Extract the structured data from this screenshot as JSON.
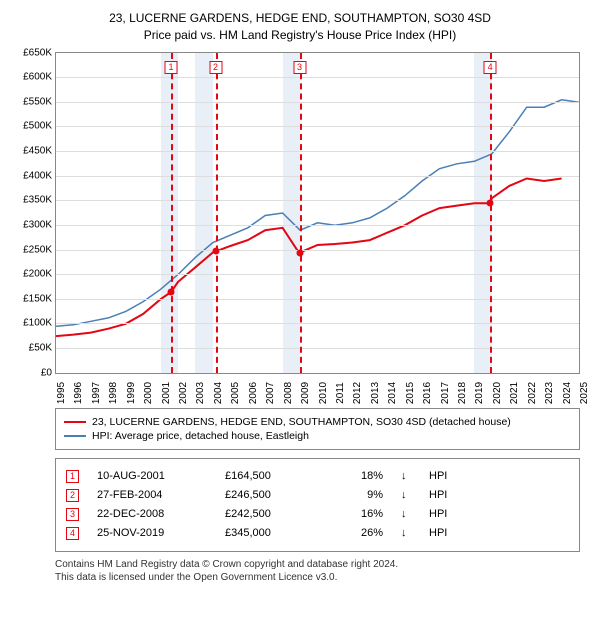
{
  "title_line1": "23, LUCERNE GARDENS, HEDGE END, SOUTHAMPTON, SO30 4SD",
  "title_line2": "Price paid vs. HM Land Registry's House Price Index (HPI)",
  "chart": {
    "type": "line",
    "x_start": 1995,
    "x_end": 2025,
    "y_min": 0,
    "y_max": 650000,
    "y_step": 50000,
    "y_prefix": "£",
    "y_suffix": "K",
    "xticks": [
      1995,
      1996,
      1997,
      1998,
      1999,
      2000,
      2001,
      2002,
      2003,
      2004,
      2005,
      2006,
      2007,
      2008,
      2009,
      2010,
      2011,
      2012,
      2013,
      2014,
      2015,
      2016,
      2017,
      2018,
      2019,
      2020,
      2021,
      2022,
      2023,
      2024,
      2025
    ],
    "bands": [
      [
        2001,
        2002
      ],
      [
        2003,
        2004
      ],
      [
        2008,
        2009
      ],
      [
        2019,
        2020
      ]
    ],
    "markers": [
      {
        "n": "1",
        "x": 2001.6
      },
      {
        "n": "2",
        "x": 2004.15
      },
      {
        "n": "3",
        "x": 2008.97
      },
      {
        "n": "4",
        "x": 2019.9
      }
    ],
    "points": [
      {
        "x": 2001.6,
        "y": 164500
      },
      {
        "x": 2004.15,
        "y": 246500
      },
      {
        "x": 2008.97,
        "y": 242500
      },
      {
        "x": 2019.9,
        "y": 345000
      }
    ],
    "series": [
      {
        "name": "property",
        "color": "#e30613",
        "width": 2,
        "data": [
          [
            1995,
            75000
          ],
          [
            1996,
            78000
          ],
          [
            1997,
            82000
          ],
          [
            1998,
            90000
          ],
          [
            1999,
            100000
          ],
          [
            2000,
            120000
          ],
          [
            2001,
            150000
          ],
          [
            2001.6,
            164500
          ],
          [
            2002,
            185000
          ],
          [
            2003,
            215000
          ],
          [
            2004,
            245000
          ],
          [
            2004.15,
            246500
          ],
          [
            2005,
            258000
          ],
          [
            2006,
            270000
          ],
          [
            2007,
            290000
          ],
          [
            2008,
            295000
          ],
          [
            2008.97,
            242500
          ],
          [
            2009,
            245000
          ],
          [
            2010,
            260000
          ],
          [
            2011,
            262000
          ],
          [
            2012,
            265000
          ],
          [
            2013,
            270000
          ],
          [
            2014,
            285000
          ],
          [
            2015,
            300000
          ],
          [
            2016,
            320000
          ],
          [
            2017,
            335000
          ],
          [
            2018,
            340000
          ],
          [
            2019,
            345000
          ],
          [
            2019.9,
            345000
          ],
          [
            2020,
            355000
          ],
          [
            2021,
            380000
          ],
          [
            2022,
            395000
          ],
          [
            2023,
            390000
          ],
          [
            2024,
            395000
          ]
        ]
      },
      {
        "name": "hpi",
        "color": "#4a7fb5",
        "width": 1.5,
        "data": [
          [
            1995,
            95000
          ],
          [
            1996,
            98000
          ],
          [
            1997,
            105000
          ],
          [
            1998,
            112000
          ],
          [
            1999,
            125000
          ],
          [
            2000,
            145000
          ],
          [
            2001,
            170000
          ],
          [
            2002,
            200000
          ],
          [
            2003,
            235000
          ],
          [
            2004,
            265000
          ],
          [
            2005,
            280000
          ],
          [
            2006,
            295000
          ],
          [
            2007,
            320000
          ],
          [
            2008,
            325000
          ],
          [
            2009,
            290000
          ],
          [
            2010,
            305000
          ],
          [
            2011,
            300000
          ],
          [
            2012,
            305000
          ],
          [
            2013,
            315000
          ],
          [
            2014,
            335000
          ],
          [
            2015,
            360000
          ],
          [
            2016,
            390000
          ],
          [
            2017,
            415000
          ],
          [
            2018,
            425000
          ],
          [
            2019,
            430000
          ],
          [
            2020,
            445000
          ],
          [
            2021,
            490000
          ],
          [
            2022,
            540000
          ],
          [
            2023,
            540000
          ],
          [
            2024,
            555000
          ],
          [
            2025,
            550000
          ]
        ]
      }
    ],
    "background_color": "#ffffff",
    "grid_color": "#dddddd"
  },
  "legend": [
    {
      "color": "#e30613",
      "label": "23, LUCERNE GARDENS, HEDGE END, SOUTHAMPTON, SO30 4SD (detached house)"
    },
    {
      "color": "#4a7fb5",
      "label": "HPI: Average price, detached house, Eastleigh"
    }
  ],
  "transactions": [
    {
      "n": "1",
      "date": "10-AUG-2001",
      "price": "£164,500",
      "pct": "18%",
      "arrow": "↓",
      "label": "HPI"
    },
    {
      "n": "2",
      "date": "27-FEB-2004",
      "price": "£246,500",
      "pct": "9%",
      "arrow": "↓",
      "label": "HPI"
    },
    {
      "n": "3",
      "date": "22-DEC-2008",
      "price": "£242,500",
      "pct": "16%",
      "arrow": "↓",
      "label": "HPI"
    },
    {
      "n": "4",
      "date": "25-NOV-2019",
      "price": "£345,000",
      "pct": "26%",
      "arrow": "↓",
      "label": "HPI"
    }
  ],
  "footer_line1": "Contains HM Land Registry data © Crown copyright and database right 2024.",
  "footer_line2": "This data is licensed under the Open Government Licence v3.0."
}
